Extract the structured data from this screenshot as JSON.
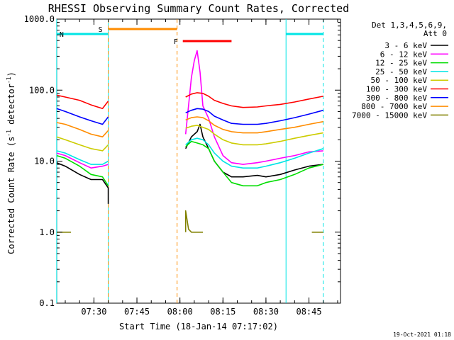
{
  "chart_data": {
    "type": "line",
    "title": "RHESSI Observing Summary Count Rates, Corrected",
    "xlabel": "Start Time (18-Jan-14 07:17:02)",
    "ylabel_prefix": "Corrected Count Rate (s",
    "ylabel_sup1": "-1",
    "ylabel_mid": " detector",
    "ylabel_sup2": "-1",
    "ylabel_suffix": ")",
    "yscale": "log",
    "ylim": [
      0.1,
      1000.0
    ],
    "xlim": [
      "07:17:02",
      "08:56:00"
    ],
    "y_ticks": [
      "0.1",
      "1.0",
      "10.0",
      "100.0",
      "1000.0"
    ],
    "x_ticks": [
      "07:30",
      "07:45",
      "08:00",
      "08:15",
      "08:30",
      "08:45"
    ],
    "grid": false,
    "footer_date": "19-Oct-2021 01:18",
    "legend": {
      "placement": "right",
      "header_line1": "Det 1,3,4,5,6,9,",
      "header_line2": "Att 0"
    },
    "series": [
      {
        "name": "3 - 6 keV",
        "color": "#000000",
        "points": [
          [
            "07:17",
            9.5
          ],
          [
            "07:20",
            8.5
          ],
          [
            "07:25",
            6.5
          ],
          [
            "07:29",
            5.5
          ],
          [
            "07:33",
            5.5
          ],
          [
            "07:35",
            4.2
          ],
          [
            "07:35",
            2.5
          ],
          [
            "07:59",
            null
          ],
          [
            "08:02",
            15
          ],
          [
            "08:04",
            22
          ],
          [
            "08:06",
            26
          ],
          [
            "08:07",
            33
          ],
          [
            "08:08",
            22
          ],
          [
            "08:10",
            15
          ],
          [
            "08:12",
            10
          ],
          [
            "08:15",
            7
          ],
          [
            "08:18",
            6
          ],
          [
            "08:22",
            6
          ],
          [
            "08:27",
            6.3
          ],
          [
            "08:30",
            6
          ],
          [
            "08:35",
            6.5
          ],
          [
            "08:40",
            7.5
          ],
          [
            "08:45",
            8.5
          ],
          [
            "08:50",
            9
          ]
        ]
      },
      {
        "name": "6 - 12 keV",
        "color": "#ff00ff",
        "points": [
          [
            "07:17",
            13
          ],
          [
            "07:20",
            12
          ],
          [
            "07:25",
            9.5
          ],
          [
            "07:29",
            8
          ],
          [
            "07:33",
            8.5
          ],
          [
            "07:35",
            9
          ],
          [
            "07:59",
            null
          ],
          [
            "08:02",
            24
          ],
          [
            "08:04",
            150
          ],
          [
            "08:05",
            260
          ],
          [
            "08:06",
            360
          ],
          [
            "08:07",
            180
          ],
          [
            "08:08",
            60
          ],
          [
            "08:10",
            40
          ],
          [
            "08:12",
            22
          ],
          [
            "08:15",
            12
          ],
          [
            "08:18",
            9.5
          ],
          [
            "08:22",
            9
          ],
          [
            "08:27",
            9.5
          ],
          [
            "08:30",
            10
          ],
          [
            "08:35",
            11
          ],
          [
            "08:40",
            12
          ],
          [
            "08:45",
            13.5
          ],
          [
            "08:50",
            14
          ]
        ]
      },
      {
        "name": "12 - 25 keV",
        "color": "#00dd00",
        "points": [
          [
            "07:17",
            12
          ],
          [
            "07:20",
            11
          ],
          [
            "07:25",
            8.5
          ],
          [
            "07:29",
            6.5
          ],
          [
            "07:33",
            6
          ],
          [
            "07:35",
            4.5
          ],
          [
            "07:59",
            null
          ],
          [
            "08:02",
            16
          ],
          [
            "08:04",
            19
          ],
          [
            "08:06",
            18
          ],
          [
            "08:08",
            17
          ],
          [
            "08:10",
            15
          ],
          [
            "08:12",
            10
          ],
          [
            "08:15",
            7
          ],
          [
            "08:18",
            5
          ],
          [
            "08:22",
            4.5
          ],
          [
            "08:27",
            4.5
          ],
          [
            "08:30",
            5
          ],
          [
            "08:35",
            5.5
          ],
          [
            "08:40",
            6.5
          ],
          [
            "08:45",
            8
          ],
          [
            "08:50",
            9
          ]
        ]
      },
      {
        "name": "25 - 50 keV",
        "color": "#00e5e5",
        "points": [
          [
            "07:17",
            14
          ],
          [
            "07:20",
            13
          ],
          [
            "07:25",
            10.5
          ],
          [
            "07:29",
            9
          ],
          [
            "07:33",
            9
          ],
          [
            "07:35",
            10
          ],
          [
            "07:59",
            null
          ],
          [
            "08:02",
            17
          ],
          [
            "08:04",
            20
          ],
          [
            "08:06",
            21
          ],
          [
            "08:08",
            20
          ],
          [
            "08:10",
            17
          ],
          [
            "08:12",
            13
          ],
          [
            "08:15",
            10
          ],
          [
            "08:18",
            8.5
          ],
          [
            "08:22",
            8
          ],
          [
            "08:27",
            8
          ],
          [
            "08:30",
            8.5
          ],
          [
            "08:35",
            9.5
          ],
          [
            "08:40",
            11
          ],
          [
            "08:45",
            13
          ],
          [
            "08:50",
            15
          ]
        ]
      },
      {
        "name": "50 - 100 keV",
        "color": "#cccc00",
        "points": [
          [
            "07:17",
            22
          ],
          [
            "07:20",
            20
          ],
          [
            "07:25",
            17
          ],
          [
            "07:29",
            15
          ],
          [
            "07:33",
            14
          ],
          [
            "07:35",
            17
          ],
          [
            "07:59",
            null
          ],
          [
            "08:02",
            29
          ],
          [
            "08:04",
            31
          ],
          [
            "08:06",
            32
          ],
          [
            "08:08",
            30
          ],
          [
            "08:10",
            28
          ],
          [
            "08:12",
            24
          ],
          [
            "08:15",
            20
          ],
          [
            "08:18",
            18
          ],
          [
            "08:22",
            17
          ],
          [
            "08:27",
            17
          ],
          [
            "08:30",
            17.5
          ],
          [
            "08:35",
            19
          ],
          [
            "08:40",
            21
          ],
          [
            "08:45",
            23
          ],
          [
            "08:50",
            25
          ]
        ]
      },
      {
        "name": "100 - 300 keV",
        "color": "#ff0000",
        "points": [
          [
            "07:17",
            85
          ],
          [
            "07:20",
            80
          ],
          [
            "07:25",
            72
          ],
          [
            "07:29",
            62
          ],
          [
            "07:33",
            55
          ],
          [
            "07:35",
            70
          ],
          [
            "07:59",
            null
          ],
          [
            "08:02",
            80
          ],
          [
            "08:04",
            88
          ],
          [
            "08:06",
            92
          ],
          [
            "08:08",
            90
          ],
          [
            "08:10",
            82
          ],
          [
            "08:12",
            72
          ],
          [
            "08:15",
            65
          ],
          [
            "08:18",
            60
          ],
          [
            "08:22",
            57
          ],
          [
            "08:27",
            58
          ],
          [
            "08:30",
            60
          ],
          [
            "08:35",
            63
          ],
          [
            "08:40",
            68
          ],
          [
            "08:45",
            75
          ],
          [
            "08:50",
            82
          ]
        ]
      },
      {
        "name": "300 - 800 keV",
        "color": "#0000ff",
        "points": [
          [
            "07:17",
            55
          ],
          [
            "07:20",
            50
          ],
          [
            "07:25",
            42
          ],
          [
            "07:29",
            37
          ],
          [
            "07:33",
            33
          ],
          [
            "07:35",
            42
          ],
          [
            "07:59",
            null
          ],
          [
            "08:02",
            48
          ],
          [
            "08:04",
            52
          ],
          [
            "08:06",
            55
          ],
          [
            "08:08",
            54
          ],
          [
            "08:10",
            50
          ],
          [
            "08:12",
            43
          ],
          [
            "08:15",
            38
          ],
          [
            "08:18",
            34
          ],
          [
            "08:22",
            33
          ],
          [
            "08:27",
            33
          ],
          [
            "08:30",
            34
          ],
          [
            "08:35",
            37
          ],
          [
            "08:40",
            41
          ],
          [
            "08:45",
            46
          ],
          [
            "08:50",
            52
          ]
        ]
      },
      {
        "name": "800 - 7000 keV",
        "color": "#ff8c00",
        "points": [
          [
            "07:17",
            35
          ],
          [
            "07:20",
            33
          ],
          [
            "07:25",
            28
          ],
          [
            "07:29",
            24
          ],
          [
            "07:33",
            22
          ],
          [
            "07:35",
            27
          ],
          [
            "07:59",
            null
          ],
          [
            "08:02",
            38
          ],
          [
            "08:04",
            41
          ],
          [
            "08:06",
            42
          ],
          [
            "08:08",
            41
          ],
          [
            "08:10",
            37
          ],
          [
            "08:12",
            32
          ],
          [
            "08:15",
            28
          ],
          [
            "08:18",
            26
          ],
          [
            "08:22",
            25
          ],
          [
            "08:27",
            25
          ],
          [
            "08:30",
            26
          ],
          [
            "08:35",
            28
          ],
          [
            "08:40",
            30
          ],
          [
            "08:45",
            33
          ],
          [
            "08:50",
            36
          ]
        ]
      },
      {
        "name": "7000 - 15000 keV",
        "color": "#808000",
        "points": [
          [
            "07:17",
            1.0
          ],
          [
            "07:22",
            1.0
          ],
          [
            "07:59",
            null
          ],
          [
            "08:02",
            1.0
          ],
          [
            "08:02",
            2.0
          ],
          [
            "08:03",
            1.1
          ],
          [
            "08:04",
            1.0
          ],
          [
            "08:08",
            1.0
          ],
          [
            "08:09",
            null
          ],
          [
            "08:46",
            1.0
          ],
          [
            "08:50",
            1.0
          ]
        ]
      }
    ],
    "markers": {
      "vertical_lines": [
        {
          "time": "07:17",
          "color": "#00e5e5",
          "style": "solid"
        },
        {
          "time": "07:35",
          "color": "#00e5e5",
          "style": "solid"
        },
        {
          "time": "07:35",
          "color": "#ff8c00",
          "style": "dashed"
        },
        {
          "time": "07:59",
          "color": "#ff8c00",
          "style": "dashed"
        },
        {
          "time": "08:37",
          "color": "#00e5e5",
          "style": "solid"
        },
        {
          "time": "08:50",
          "color": "#00e5e5",
          "style": "dashed"
        }
      ],
      "bars": [
        {
          "label": "S",
          "start": "07:35",
          "end": "07:59",
          "color": "#ff8c00"
        },
        {
          "label": "N",
          "start": "07:17",
          "end": "07:35",
          "color": "#00e5e5"
        },
        {
          "label": "",
          "start": "08:37",
          "end": "08:50",
          "color": "#00e5e5"
        },
        {
          "label": "F",
          "start": "08:01",
          "end": "08:18",
          "color": "#ff0000"
        }
      ]
    }
  }
}
